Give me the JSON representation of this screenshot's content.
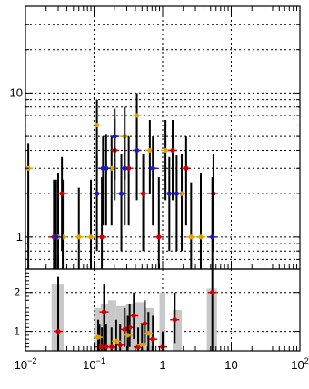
{
  "chart_data": [
    {
      "type": "scatter",
      "panel": "upper",
      "x_scale": "log",
      "y_scale": "log",
      "xlim": [
        0.01,
        100
      ],
      "ylim": [
        0.6,
        40
      ],
      "y_ticks": [
        {
          "value": 1,
          "label": "1"
        },
        {
          "value": 10,
          "label": "10"
        }
      ],
      "grid": true,
      "error_bars": "vertical",
      "series": [
        {
          "color": "#e0a000",
          "points": [
            {
              "x": 0.011,
              "y": 3,
              "lo": 0.5,
              "hi": 4.5
            },
            {
              "x": 0.03,
              "y": 1,
              "lo": 0.5,
              "hi": 2.8
            },
            {
              "x": 0.035,
              "y": 1,
              "lo": 0.5,
              "hi": 2.5
            },
            {
              "x": 0.06,
              "y": 1,
              "lo": 0.5,
              "hi": 2.2
            },
            {
              "x": 0.09,
              "y": 1,
              "lo": 0.5,
              "hi": 2.5
            },
            {
              "x": 0.11,
              "y": 6,
              "lo": 3,
              "hi": 9
            },
            {
              "x": 0.18,
              "y": 3,
              "lo": 1.2,
              "hi": 5
            },
            {
              "x": 0.28,
              "y": 5,
              "lo": 2.5,
              "hi": 8
            },
            {
              "x": 0.42,
              "y": 7,
              "lo": 3.5,
              "hi": 10
            },
            {
              "x": 0.65,
              "y": 4,
              "lo": 2,
              "hi": 6.5
            },
            {
              "x": 1.1,
              "y": 4,
              "lo": 1.8,
              "hi": 6.5
            },
            {
              "x": 1.9,
              "y": 2,
              "lo": 0.8,
              "hi": 3.8
            },
            {
              "x": 2.6,
              "y": 1,
              "lo": 0.5,
              "hi": 2.4
            },
            {
              "x": 3.6,
              "y": 1,
              "lo": 0.5,
              "hi": 2.8
            }
          ]
        },
        {
          "color": "#d40000",
          "points": [
            {
              "x": 0.026,
              "y": 1,
              "lo": 0.5,
              "hi": 2.5
            },
            {
              "x": 0.034,
              "y": 2,
              "lo": 0.8,
              "hi": 3.6
            },
            {
              "x": 0.13,
              "y": 1,
              "lo": 0.5,
              "hi": 2.6
            },
            {
              "x": 0.2,
              "y": 4,
              "lo": 1.8,
              "hi": 6.6
            },
            {
              "x": 0.32,
              "y": 3,
              "lo": 1.2,
              "hi": 5
            },
            {
              "x": 0.52,
              "y": 2,
              "lo": 0.8,
              "hi": 3.8
            },
            {
              "x": 0.88,
              "y": 1,
              "lo": 0.5,
              "hi": 2.6
            },
            {
              "x": 1.4,
              "y": 4,
              "lo": 1.8,
              "hi": 6.5
            },
            {
              "x": 2.2,
              "y": 3,
              "lo": 1.2,
              "hi": 5
            },
            {
              "x": 5.5,
              "y": 2,
              "lo": 0.8,
              "hi": 3.8
            }
          ]
        },
        {
          "color": "#1a1ab8",
          "points": [
            {
              "x": 0.028,
              "y": 1,
              "lo": 0.5,
              "hi": 2.5
            },
            {
              "x": 0.11,
              "y": 2,
              "lo": 0.8,
              "hi": 3.7
            },
            {
              "x": 0.135,
              "y": 3,
              "lo": 1.2,
              "hi": 5
            },
            {
              "x": 0.15,
              "y": 3,
              "lo": 1.2,
              "hi": 5.2
            },
            {
              "x": 0.2,
              "y": 5,
              "lo": 2.5,
              "hi": 7.8
            },
            {
              "x": 0.25,
              "y": 2,
              "lo": 0.8,
              "hi": 3.8
            },
            {
              "x": 0.28,
              "y": 3,
              "lo": 1.2,
              "hi": 5.2
            },
            {
              "x": 0.42,
              "y": 4,
              "lo": 1.8,
              "hi": 6.5
            },
            {
              "x": 0.72,
              "y": 3,
              "lo": 1.2,
              "hi": 5
            },
            {
              "x": 1.25,
              "y": 2,
              "lo": 0.8,
              "hi": 3.6
            },
            {
              "x": 1.6,
              "y": 2,
              "lo": 0.8,
              "hi": 3.7
            },
            {
              "x": 5.3,
              "y": 1,
              "lo": 0.5,
              "hi": 2.6
            }
          ]
        }
      ]
    },
    {
      "type": "scatter",
      "panel": "lower",
      "x_scale": "log",
      "xlim": [
        0.01,
        100
      ],
      "ylim": [
        0.5,
        2.6
      ],
      "y_ticks": [
        {
          "value": 1,
          "label": "1"
        },
        {
          "value": 2,
          "label": "2"
        }
      ],
      "x_ticks": [
        {
          "value": 0.01,
          "label": "10^-2",
          "base": "10",
          "exp": "−2"
        },
        {
          "value": 0.1,
          "label": "10^-1",
          "base": "10",
          "exp": "−1"
        },
        {
          "value": 1,
          "label": "1",
          "base": "1",
          "exp": ""
        },
        {
          "value": 10,
          "label": "10",
          "base": "10",
          "exp": ""
        },
        {
          "value": 100,
          "label": "10^2",
          "base": "10",
          "exp": "2"
        }
      ],
      "grid": true,
      "error_bands": [
        {
          "x0": 0.024,
          "x1": 0.036,
          "lo": 0.5,
          "hi": 2.2
        },
        {
          "x0": 0.1,
          "x1": 0.125,
          "lo": 0.5,
          "hi": 1.6
        },
        {
          "x0": 0.125,
          "x1": 0.16,
          "lo": 0.5,
          "hi": 1.7
        },
        {
          "x0": 0.16,
          "x1": 0.21,
          "lo": 0.5,
          "hi": 1.8
        },
        {
          "x0": 0.21,
          "x1": 0.29,
          "lo": 0.5,
          "hi": 1.65
        },
        {
          "x0": 0.29,
          "x1": 0.4,
          "lo": 0.5,
          "hi": 1.7
        },
        {
          "x0": 0.4,
          "x1": 0.55,
          "lo": 0.5,
          "hi": 1.75
        },
        {
          "x0": 0.55,
          "x1": 0.75,
          "lo": 0.5,
          "hi": 1.6
        },
        {
          "x0": 0.9,
          "x1": 1.1,
          "lo": 0.5,
          "hi": 2.0
        },
        {
          "x0": 1.4,
          "x1": 1.9,
          "lo": 0.5,
          "hi": 1.55
        },
        {
          "x0": 4.4,
          "x1": 6.2,
          "lo": 0.5,
          "hi": 2.1
        }
      ],
      "series": [
        {
          "color": "#d40000",
          "points": [
            {
              "x": 0.03,
              "y": 1,
              "lo": 0.5,
              "hi": 2.4
            },
            {
              "x": 0.12,
              "y": 0.6,
              "lo": 0.5,
              "hi": 1.2
            },
            {
              "x": 0.13,
              "y": 0.6,
              "lo": 0.5,
              "hi": 1.1
            },
            {
              "x": 0.14,
              "y": 1.5,
              "lo": 0.5,
              "hi": 2.2
            },
            {
              "x": 0.15,
              "y": 0.6,
              "lo": 0.5,
              "hi": 1.2
            },
            {
              "x": 0.18,
              "y": 0.6,
              "lo": 0.5,
              "hi": 1.1
            },
            {
              "x": 0.24,
              "y": 0.65,
              "lo": 0.5,
              "hi": 1.2
            },
            {
              "x": 0.28,
              "y": 1.05,
              "lo": 0.6,
              "hi": 1.6
            },
            {
              "x": 0.33,
              "y": 1.1,
              "lo": 0.6,
              "hi": 1.7
            },
            {
              "x": 0.38,
              "y": 1.4,
              "lo": 0.8,
              "hi": 2.0
            },
            {
              "x": 0.44,
              "y": 0.6,
              "lo": 0.5,
              "hi": 1.1
            },
            {
              "x": 0.55,
              "y": 1.2,
              "lo": 0.7,
              "hi": 1.8
            },
            {
              "x": 0.72,
              "y": 0.8,
              "lo": 0.5,
              "hi": 1.4
            },
            {
              "x": 1.0,
              "y": 0.6,
              "lo": 0.5,
              "hi": 1.0
            },
            {
              "x": 1.5,
              "y": 1.3,
              "lo": 0.7,
              "hi": 2.0
            },
            {
              "x": 5.3,
              "y": 2.0,
              "lo": 0.5,
              "hi": 2.6
            }
          ]
        },
        {
          "color": "#e0a000",
          "points": [
            {
              "x": 0.115,
              "y": 0.85,
              "lo": 0.5,
              "hi": 1.3
            },
            {
              "x": 0.21,
              "y": 0.75,
              "lo": 0.5,
              "hi": 1.3
            },
            {
              "x": 0.31,
              "y": 0.9,
              "lo": 0.5,
              "hi": 1.4
            },
            {
              "x": 0.5,
              "y": 0.65,
              "lo": 0.5,
              "hi": 1.2
            },
            {
              "x": 0.62,
              "y": 0.95,
              "lo": 0.5,
              "hi": 1.5
            }
          ]
        }
      ]
    }
  ]
}
